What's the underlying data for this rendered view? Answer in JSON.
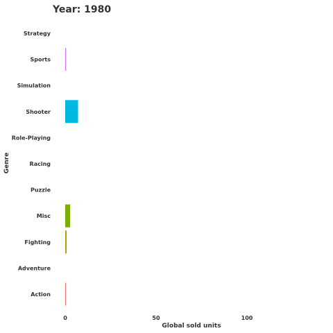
{
  "chart_data": {
    "type": "bar",
    "orientation": "horizontal",
    "title": "Year: 1980",
    "xlabel": "Global sold units",
    "ylabel": "Genre",
    "xlim": [
      0,
      140
    ],
    "xticks": [
      0,
      50,
      100
    ],
    "categories": [
      "Strategy",
      "Sports",
      "Simulation",
      "Shooter",
      "Role-Playing",
      "Racing",
      "Puzzle",
      "Misc",
      "Fighting",
      "Adventure",
      "Action"
    ],
    "values": [
      0,
      0.49,
      0,
      7.07,
      0,
      0,
      0,
      2.71,
      0.77,
      0,
      0.34
    ],
    "colors": [
      "#ff61c3",
      "#db72fb",
      "#619cff",
      "#00b9e3",
      "#00bfc4",
      "#00ba38",
      "#00c19f",
      "#7cae00",
      "#b79f00",
      "#d39200",
      "#f8766d"
    ],
    "grid": false,
    "legend": "none"
  }
}
